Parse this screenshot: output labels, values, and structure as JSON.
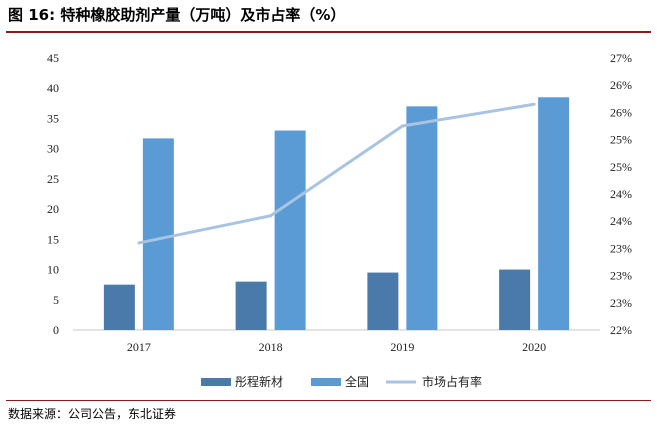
{
  "title": "图 16:  特种橡胶助剂产量（万吨）及市占率（%）",
  "source": "数据来源：公司公告，东北证券",
  "chart_data": {
    "type": "bar",
    "categories": [
      "2017",
      "2018",
      "2019",
      "2020"
    ],
    "series": [
      {
        "name": "彤程新材",
        "type": "bar",
        "axis": "left",
        "color": "#4a7aaa",
        "values": [
          7.5,
          8.0,
          9.5,
          10.0
        ]
      },
      {
        "name": "全国",
        "type": "bar",
        "axis": "left",
        "color": "#5b9bd5",
        "values": [
          31.7,
          33.0,
          37.0,
          38.5
        ]
      },
      {
        "name": "市场占有率",
        "type": "line",
        "axis": "right",
        "color": "#a9c3e2",
        "values": [
          23.6,
          24.1,
          25.75,
          26.15
        ]
      }
    ],
    "left_axis": {
      "ylim": [
        0,
        45
      ],
      "ticks": [
        0,
        5,
        10,
        15,
        20,
        25,
        30,
        35,
        40,
        45
      ]
    },
    "right_axis": {
      "ylim": [
        22,
        27
      ],
      "ticks": [
        22,
        22.5,
        23,
        23.5,
        24,
        24.5,
        25,
        25.5,
        26,
        26.5,
        27
      ],
      "tick_labels": [
        "22%",
        "23%",
        "23%",
        "23%",
        "24%",
        "24%",
        "25%",
        "25%",
        "26%",
        "26%",
        "27%"
      ]
    },
    "legend": {
      "position": "bottom"
    },
    "grid": false
  }
}
